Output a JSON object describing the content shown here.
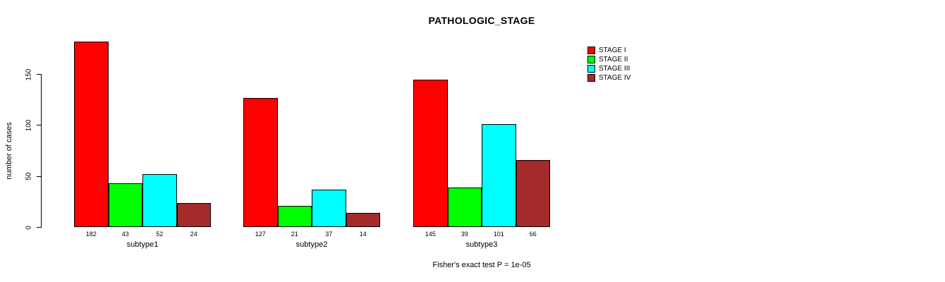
{
  "chart_data": {
    "type": "bar",
    "title": "PATHOLOGIC_STAGE",
    "ylabel": "number of cases",
    "footnote": "Fisher's exact test P = 1e-05",
    "categories": [
      "subtype1",
      "subtype2",
      "subtype3"
    ],
    "series": [
      {
        "name": "STAGE I",
        "color": "#FF0000",
        "values": [
          182,
          127,
          145
        ]
      },
      {
        "name": "STAGE II",
        "color": "#00FF00",
        "values": [
          43,
          21,
          39
        ]
      },
      {
        "name": "STAGE III",
        "color": "#00FFFF",
        "values": [
          52,
          37,
          101
        ]
      },
      {
        "name": "STAGE IV",
        "color": "#A52A2A",
        "values": [
          24,
          14,
          66
        ]
      }
    ],
    "yticks": [
      0,
      50,
      100,
      150
    ],
    "ylim": [
      0,
      185
    ],
    "grid": false,
    "legend_position": "top-right",
    "bar_value_labels": true,
    "axis_color": "#000000",
    "background_color": "#FFFFFF"
  }
}
